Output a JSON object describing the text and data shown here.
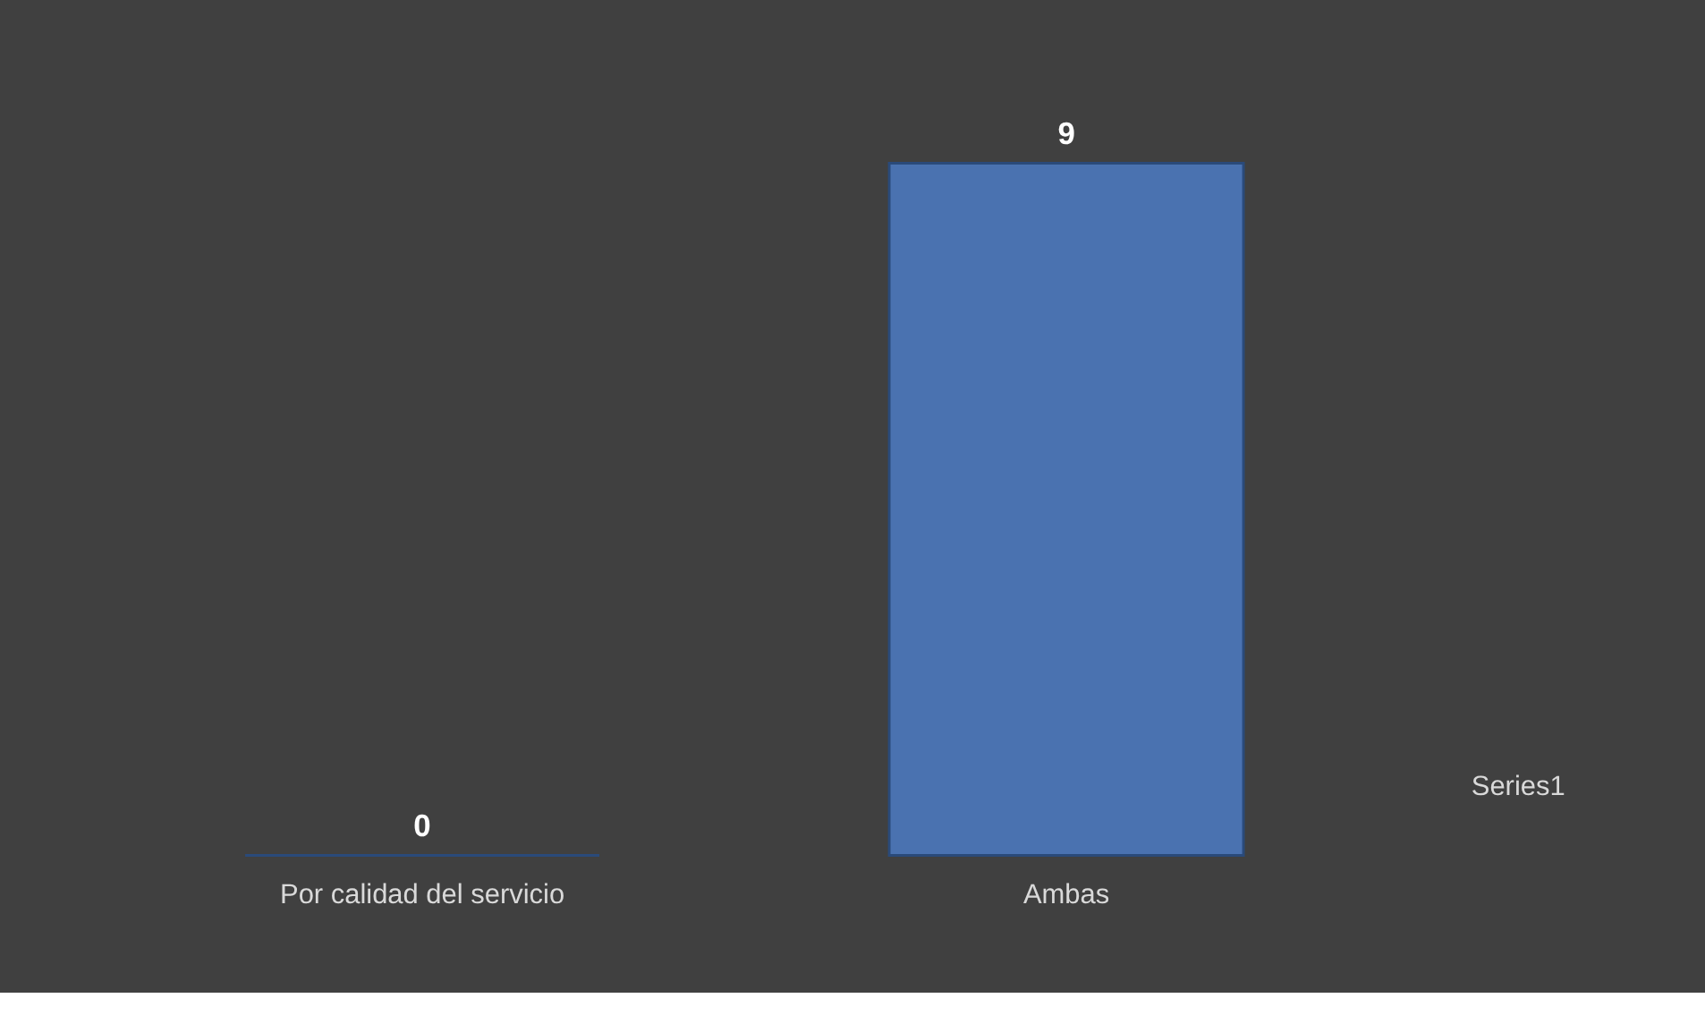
{
  "chart_data": {
    "type": "bar",
    "categories": [
      "Por calidad del servicio",
      "Ambas"
    ],
    "series": [
      {
        "name": "Series1",
        "color": "#4a72b0",
        "values": [
          0,
          9
        ]
      }
    ],
    "data_labels": true,
    "grid": false
  }
}
